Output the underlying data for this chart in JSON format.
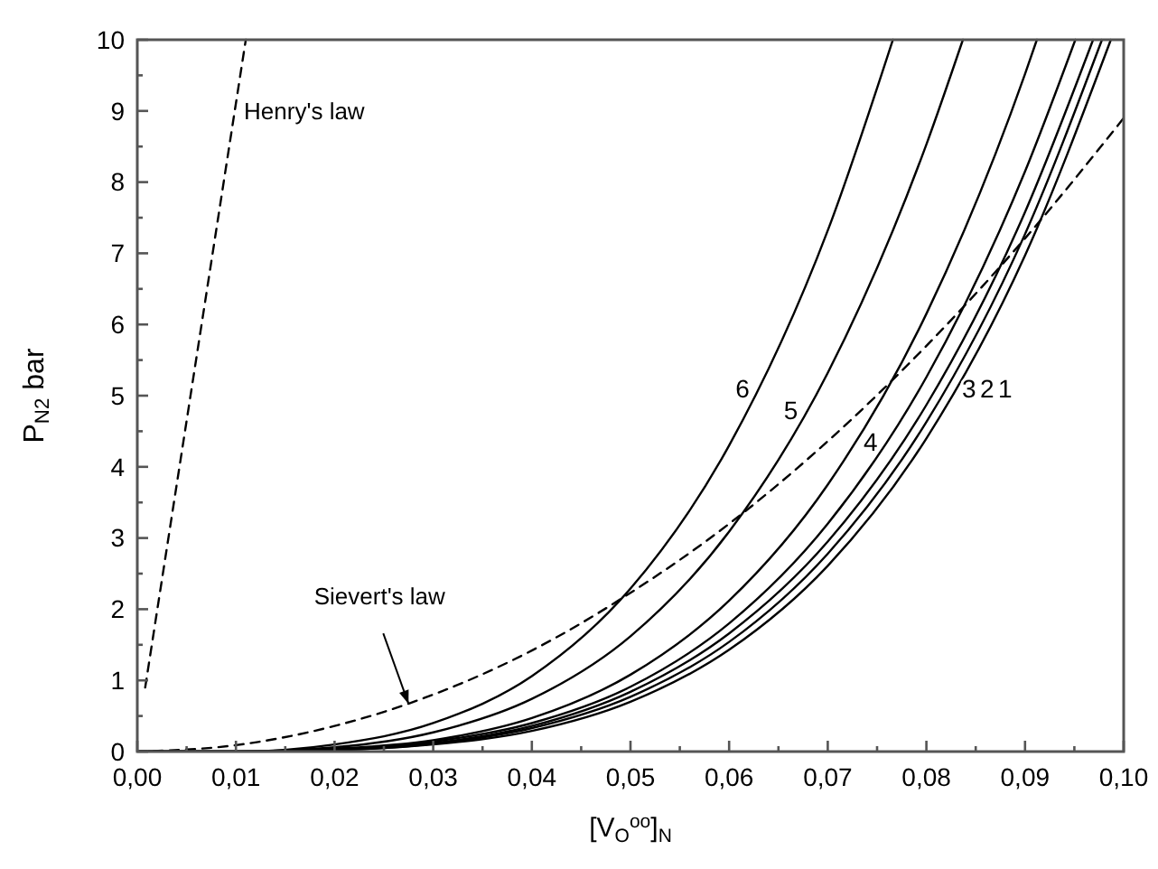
{
  "chart_data": {
    "type": "line",
    "xlabel": "[V$_{O}$$^{oo}$]$_{N}$",
    "ylabel": "P$_{N2}$  bar",
    "xlim": [
      0,
      0.1
    ],
    "ylim": [
      0,
      10
    ],
    "xticks": [
      {
        "value": 0,
        "label": "0,00"
      },
      {
        "value": 0.005,
        "label": null
      },
      {
        "value": 0.01,
        "label": "0,01"
      },
      {
        "value": 0.015,
        "label": null
      },
      {
        "value": 0.02,
        "label": "0,02"
      },
      {
        "value": 0.025,
        "label": null
      },
      {
        "value": 0.03,
        "label": "0,03"
      },
      {
        "value": 0.035,
        "label": null
      },
      {
        "value": 0.04,
        "label": "0,04"
      },
      {
        "value": 0.045,
        "label": null
      },
      {
        "value": 0.05,
        "label": "0,05"
      },
      {
        "value": 0.055,
        "label": null
      },
      {
        "value": 0.06,
        "label": "0,06"
      },
      {
        "value": 0.065,
        "label": null
      },
      {
        "value": 0.07,
        "label": "0,07"
      },
      {
        "value": 0.075,
        "label": null
      },
      {
        "value": 0.08,
        "label": "0,08"
      },
      {
        "value": 0.085,
        "label": null
      },
      {
        "value": 0.09,
        "label": "0,09"
      },
      {
        "value": 0.095,
        "label": null
      },
      {
        "value": 0.1,
        "label": "0,10"
      }
    ],
    "yticks": [
      0,
      {
        "value": 0.5,
        "label": null
      },
      1,
      {
        "value": 1.5,
        "label": null
      },
      2,
      {
        "value": 2.5,
        "label": null
      },
      3,
      {
        "value": 3.5,
        "label": null
      },
      4,
      {
        "value": 4.5,
        "label": null
      },
      5,
      {
        "value": 5.5,
        "label": null
      },
      6,
      {
        "value": 6.5,
        "label": null
      },
      7,
      {
        "value": 7.5,
        "label": null
      },
      8,
      {
        "value": 8.5,
        "label": null
      },
      9,
      {
        "value": 9.5,
        "label": null
      },
      10
    ],
    "grid": false,
    "marker": "none",
    "line_style": "solid",
    "series": [
      {
        "color": "#000000",
        "x": [
          0,
          0.01,
          0.02,
          0.03,
          0.04,
          0.05,
          0.06,
          0.07,
          0.0766
        ],
        "values": [
          0,
          0,
          0.1,
          0.4,
          1.06,
          2.29,
          4.3,
          7.32,
          10
        ]
      },
      {
        "color": "#000000",
        "x": [
          0,
          0.01,
          0.02,
          0.03,
          0.04,
          0.05,
          0.06,
          0.07,
          0.08,
          0.0837
        ],
        "values": [
          0,
          0,
          0.06,
          0.27,
          0.74,
          1.62,
          3.09,
          5.32,
          8.53,
          10
        ]
      },
      {
        "color": "#000000",
        "x": [
          0,
          0.01,
          0.02,
          0.03,
          0.04,
          0.05,
          0.06,
          0.07,
          0.08,
          0.09,
          0.0912
        ],
        "values": [
          0,
          0,
          0.04,
          0.16,
          0.47,
          1.08,
          2.12,
          3.75,
          6.15,
          9.52,
          10
        ]
      },
      {
        "color": "#000000",
        "x": [
          0,
          0.01,
          0.02,
          0.03,
          0.04,
          0.05,
          0.06,
          0.07,
          0.08,
          0.09,
          0.0951
        ],
        "values": [
          0,
          0,
          0.03,
          0.14,
          0.4,
          0.91,
          1.8,
          3.2,
          5.26,
          8.15,
          10
        ]
      },
      {
        "color": "#000000",
        "x": [
          0,
          0.01,
          0.02,
          0.03,
          0.04,
          0.05,
          0.06,
          0.07,
          0.08,
          0.09,
          0.0969
        ],
        "values": [
          0,
          0,
          0.03,
          0.12,
          0.36,
          0.84,
          1.66,
          2.95,
          4.87,
          7.58,
          10
        ]
      },
      {
        "color": "#000000",
        "x": [
          0,
          0.01,
          0.02,
          0.03,
          0.04,
          0.05,
          0.06,
          0.07,
          0.08,
          0.09,
          0.0978
        ],
        "values": [
          0,
          0,
          0.02,
          0.11,
          0.33,
          0.77,
          1.54,
          2.78,
          4.63,
          7.27,
          10
        ]
      },
      {
        "color": "#000000",
        "x": [
          0,
          0.01,
          0.02,
          0.03,
          0.04,
          0.05,
          0.06,
          0.07,
          0.08,
          0.09,
          0.0987
        ],
        "values": [
          0,
          0,
          0.02,
          0.1,
          0.29,
          0.7,
          1.43,
          2.61,
          4.4,
          6.97,
          10
        ]
      },
      {
        "color": "#000000",
        "line_style": "dashed",
        "x": [
          0.0008,
          0.011
        ],
        "values": [
          0.9,
          10
        ]
      },
      {
        "color": "#000000",
        "line_style": "dashed",
        "x": [
          0,
          0.01,
          0.02,
          0.03,
          0.04,
          0.05,
          0.06,
          0.07,
          0.08,
          0.09,
          0.1
        ],
        "values": [
          0,
          0.09,
          0.36,
          0.8,
          1.42,
          2.23,
          3.2,
          4.36,
          5.7,
          7.21,
          8.9
        ]
      }
    ],
    "annotations": [
      {
        "text": "Henry's law",
        "x": 0.0099,
        "y": 9
      },
      {
        "text": "Sievert's law",
        "x": 0.0275,
        "y": 0.67
      },
      {
        "text": "6",
        "x": 0.0628,
        "y": 5.1
      },
      {
        "text": "5",
        "x": 0.0677,
        "y": 4.8
      },
      {
        "text": "4",
        "x": 0.0727,
        "y": 4.35
      },
      {
        "text": "3",
        "x": 0.0827,
        "y": 5.1
      },
      {
        "text": "2",
        "x": 0.0827,
        "y": 5.1
      },
      {
        "text": "1",
        "x": 0.0827,
        "y": 5.1
      }
    ]
  }
}
